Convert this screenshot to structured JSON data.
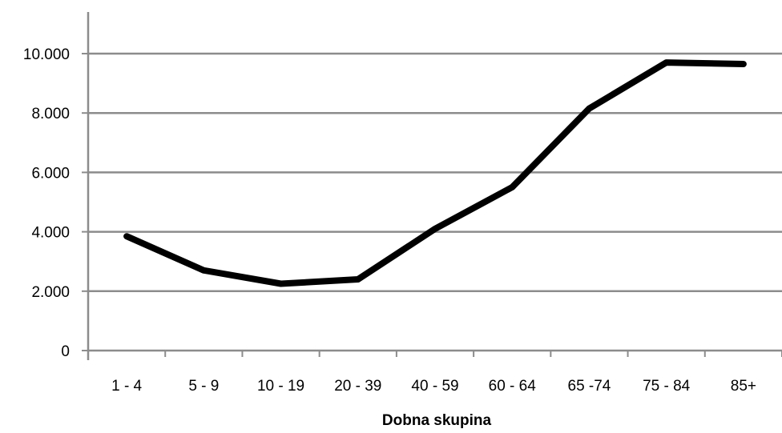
{
  "chart_data": {
    "type": "line",
    "title": "",
    "xlabel": "Dobna skupina",
    "ylabel": "",
    "categories": [
      "1 - 4",
      "5 - 9",
      "10 - 19",
      "20 - 39",
      "40 - 59",
      "60 - 64",
      "65 -74",
      "75 - 84",
      "85+"
    ],
    "series": [
      {
        "values": [
          3850,
          2700,
          2250,
          2400,
          4100,
          5500,
          8150,
          9700,
          9650
        ],
        "color": "#000000"
      }
    ],
    "ylim": [
      0,
      11000
    ],
    "yticks": [
      0,
      2000,
      4000,
      6000,
      8000,
      10000
    ],
    "ytick_labels": [
      "0",
      "2.000",
      "4.000",
      "6.000",
      "8.000",
      "10.000"
    ],
    "grid": true,
    "legend": "none"
  }
}
